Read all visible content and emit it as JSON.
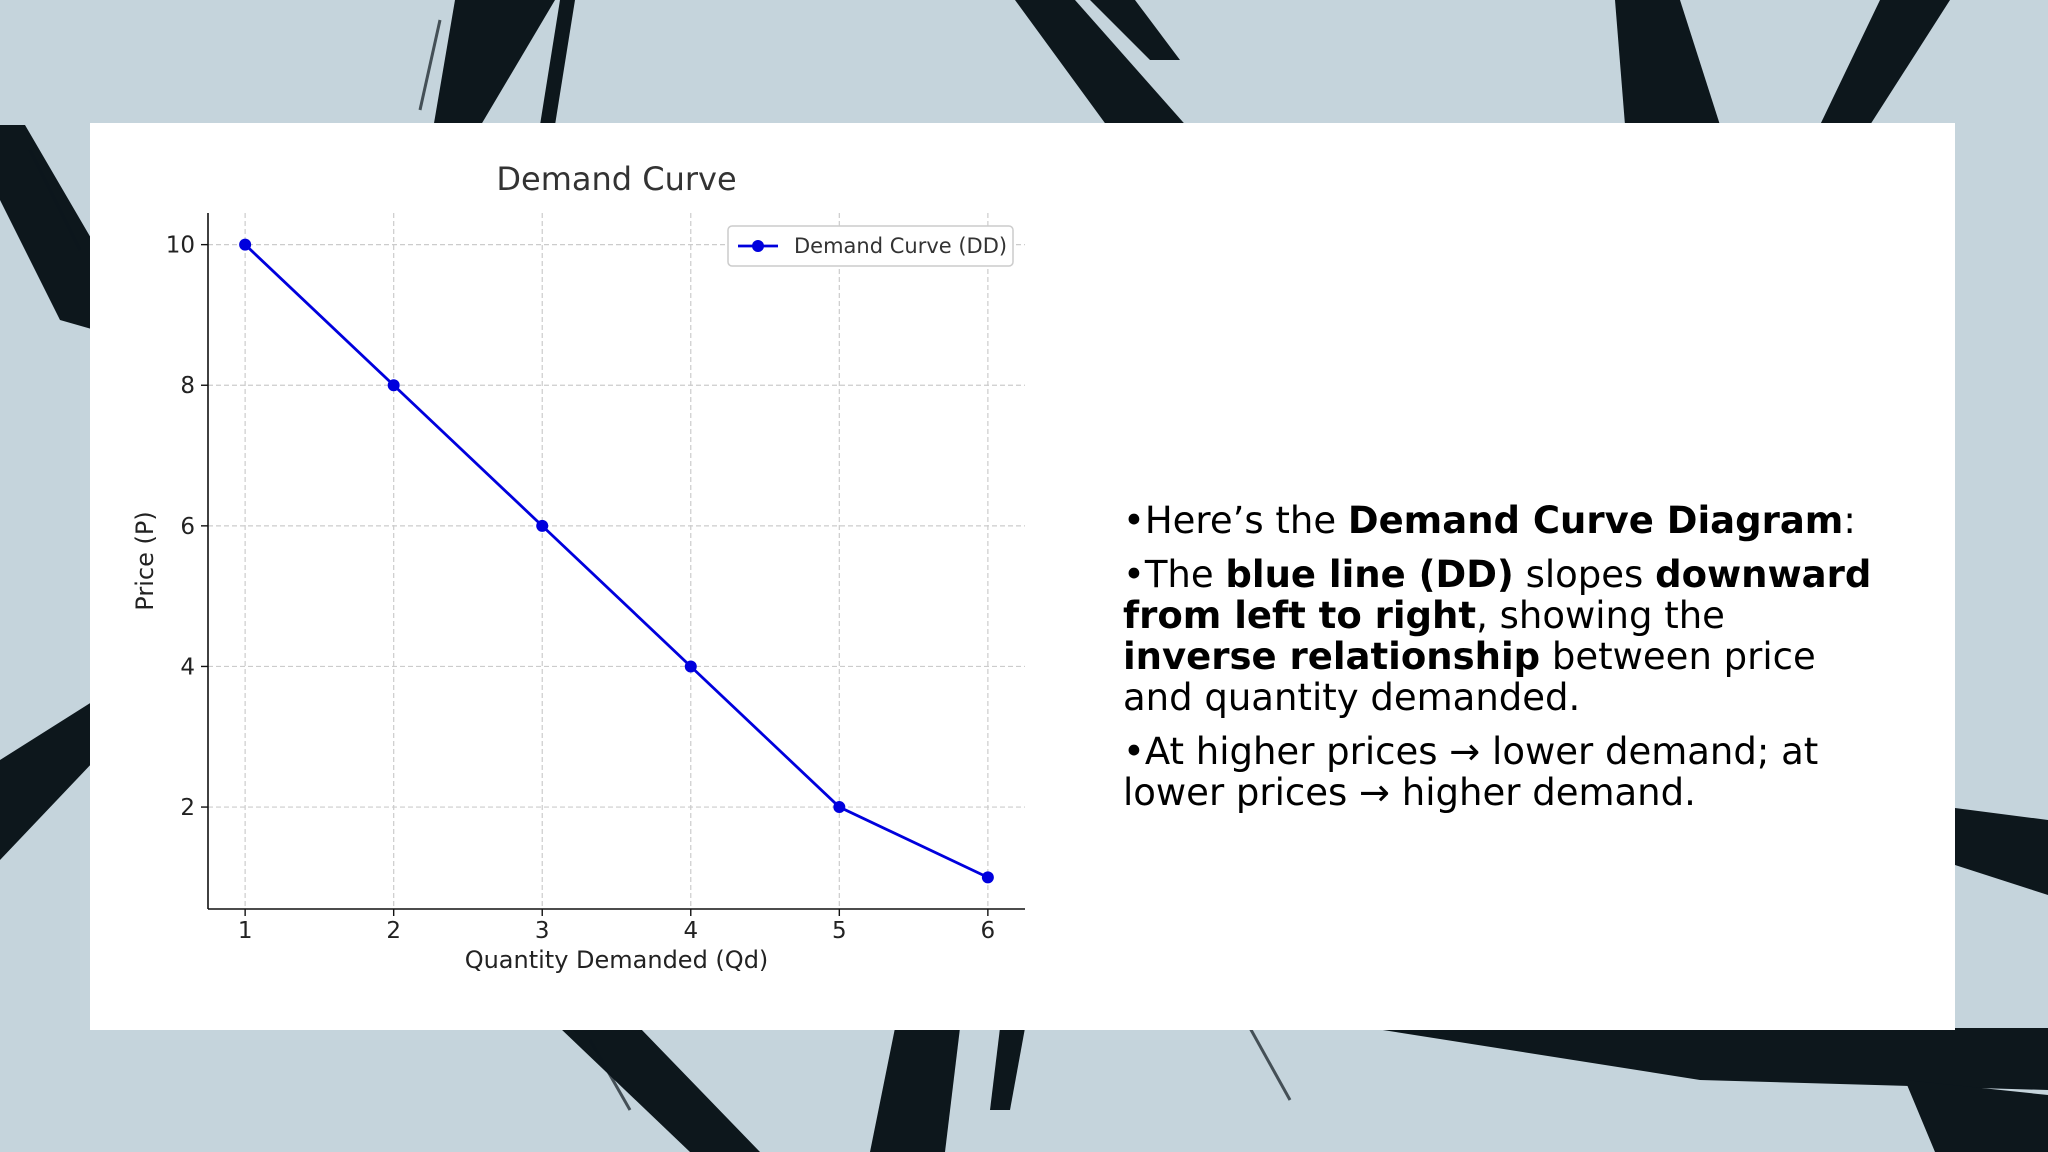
{
  "slide": {
    "bullet_symbol": "•",
    "bullets": [
      {
        "parts": [
          {
            "t": "Here’s the ",
            "b": false
          },
          {
            "t": "Demand Curve Diagram",
            "b": true
          },
          {
            "t": ":",
            "b": false
          }
        ]
      },
      {
        "parts": [
          {
            "t": "The ",
            "b": false
          },
          {
            "t": "blue line (DD)",
            "b": true
          },
          {
            "t": " slopes ",
            "b": false
          },
          {
            "t": "downward from left to right",
            "b": true
          },
          {
            "t": ", showing the ",
            "b": false
          },
          {
            "t": "inverse relationship",
            "b": true
          },
          {
            "t": " between price and quantity demanded.",
            "b": false
          }
        ]
      },
      {
        "parts": [
          {
            "t": "At higher prices → lower demand; at lower prices → higher demand.",
            "b": false
          }
        ]
      }
    ]
  },
  "colors": {
    "background": "#c5d4dc",
    "brush": "#0d171c",
    "line": "#0000dd",
    "panel": "#ffffff"
  },
  "chart_data": {
    "type": "line",
    "title": "Demand Curve",
    "xlabel": "Quantity Demanded (Qd)",
    "ylabel": "Price (P)",
    "x": [
      1,
      2,
      3,
      4,
      5,
      6
    ],
    "series": [
      {
        "name": "Demand Curve (DD)",
        "values": [
          10,
          8,
          6,
          4,
          2,
          1
        ],
        "color": "#0000dd"
      }
    ],
    "xticks": [
      1,
      2,
      3,
      4,
      5,
      6
    ],
    "yticks": [
      2,
      4,
      6,
      8,
      10
    ],
    "xlim": [
      0.75,
      6.25
    ],
    "ylim": [
      0.55,
      10.45
    ],
    "grid": true,
    "legend": "top-right"
  }
}
